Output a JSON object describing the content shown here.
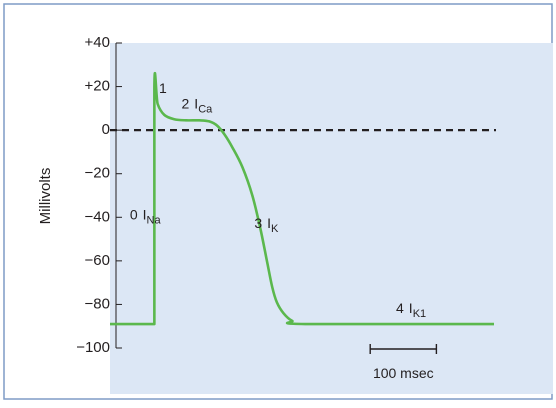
{
  "colors": {
    "frame": "#7f9bc6",
    "plot_background": "#dce7f5",
    "curve": "#5bb84d",
    "zero_line": "#231f20",
    "axis": "#231f20"
  },
  "chart_data": {
    "type": "line",
    "title": "",
    "xlabel": "",
    "ylabel": "Millivolts",
    "ylim": [
      -100,
      40
    ],
    "grid": false,
    "y_ticks": [
      {
        "value": 40,
        "label": "+40"
      },
      {
        "value": 20,
        "label": "+20"
      },
      {
        "value": 0,
        "label": "0"
      },
      {
        "value": -20,
        "label": "−20"
      },
      {
        "value": -40,
        "label": "−40"
      },
      {
        "value": -60,
        "label": "−60"
      },
      {
        "value": -80,
        "label": "−80"
      },
      {
        "value": -100,
        "label": "−100"
      }
    ],
    "reference_line": {
      "y": 0,
      "style": "dashed"
    },
    "x_unit": "msec",
    "x_range": [
      -170,
      410
    ],
    "series": [
      {
        "values": [
          {
            "x": -170,
            "y": -89
          },
          {
            "x": -103,
            "y": -89
          },
          {
            "x": -103,
            "y": 20
          },
          {
            "x": -98,
            "y": 12
          },
          {
            "x": -88,
            "y": 7
          },
          {
            "x": -73,
            "y": 5
          },
          {
            "x": -55,
            "y": 4.5
          },
          {
            "x": -35,
            "y": 4.5
          },
          {
            "x": -20,
            "y": 4
          },
          {
            "x": -8,
            "y": 2
          },
          {
            "x": 3,
            "y": -2
          },
          {
            "x": 15,
            "y": -8
          },
          {
            "x": 30,
            "y": -17
          },
          {
            "x": 45,
            "y": -30
          },
          {
            "x": 57,
            "y": -45
          },
          {
            "x": 67,
            "y": -60
          },
          {
            "x": 75,
            "y": -72
          },
          {
            "x": 82,
            "y": -79
          },
          {
            "x": 92,
            "y": -84
          },
          {
            "x": 105,
            "y": -87.5
          },
          {
            "x": 125,
            "y": -89
          },
          {
            "x": 410,
            "y": -89
          }
        ]
      }
    ],
    "annotations": [
      {
        "name": "phase-0",
        "number": "0",
        "main": "I",
        "sub": "Na",
        "x": -140,
        "y": -41
      },
      {
        "name": "phase-1",
        "number": "1",
        "main": "",
        "sub": "",
        "x": -96,
        "y": 17
      },
      {
        "name": "phase-2",
        "number": "2",
        "main": "I",
        "sub": "Ca",
        "x": -62,
        "y": 10
      },
      {
        "name": "phase-3",
        "number": "3",
        "main": "I",
        "sub": "K",
        "x": 48,
        "y": -45
      },
      {
        "name": "phase-4",
        "number": "4",
        "main": "I",
        "sub": "K1",
        "x": 262,
        "y": -84
      }
    ],
    "scale_bar": {
      "length": 100,
      "start": 223,
      "label": "100 msec"
    }
  }
}
